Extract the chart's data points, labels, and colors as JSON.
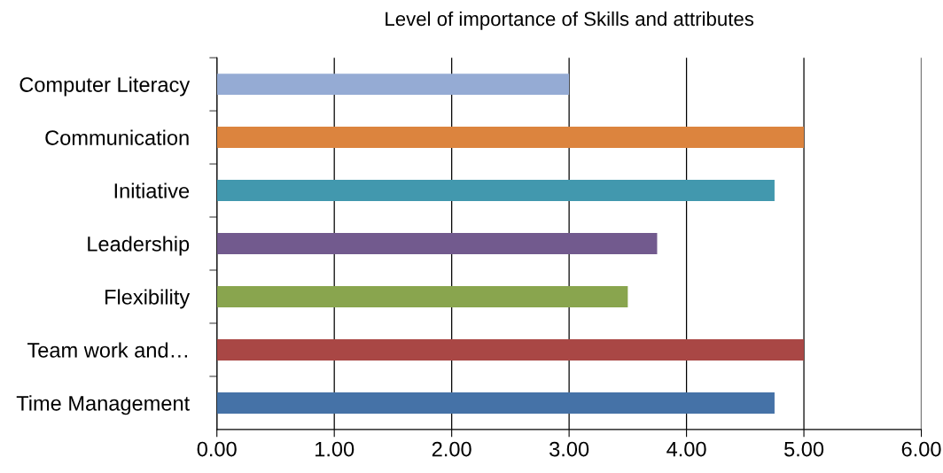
{
  "chart_data": {
    "type": "bar",
    "orientation": "horizontal",
    "title": "Level of importance of Skills and attributes",
    "categories": [
      "Computer Literacy",
      "Communication",
      "Initiative",
      "Leadership",
      "Flexibility",
      "Team work and…",
      "Time Management"
    ],
    "values": [
      3.0,
      5.0,
      4.75,
      3.75,
      3.5,
      5.0,
      4.75
    ],
    "colors": [
      "#95abd4",
      "#dc843e",
      "#4298ae",
      "#725a8e",
      "#89a54e",
      "#a94745",
      "#4572a7"
    ],
    "xlim": [
      0,
      6
    ],
    "xticks": [
      {
        "value": 0,
        "label": "0.00"
      },
      {
        "value": 1,
        "label": "1.00"
      },
      {
        "value": 2,
        "label": "2.00"
      },
      {
        "value": 3,
        "label": "3.00"
      },
      {
        "value": 4,
        "label": "4.00"
      },
      {
        "value": 5,
        "label": "5.00"
      },
      {
        "value": 6,
        "label": "6.00"
      }
    ],
    "grid": "x"
  }
}
